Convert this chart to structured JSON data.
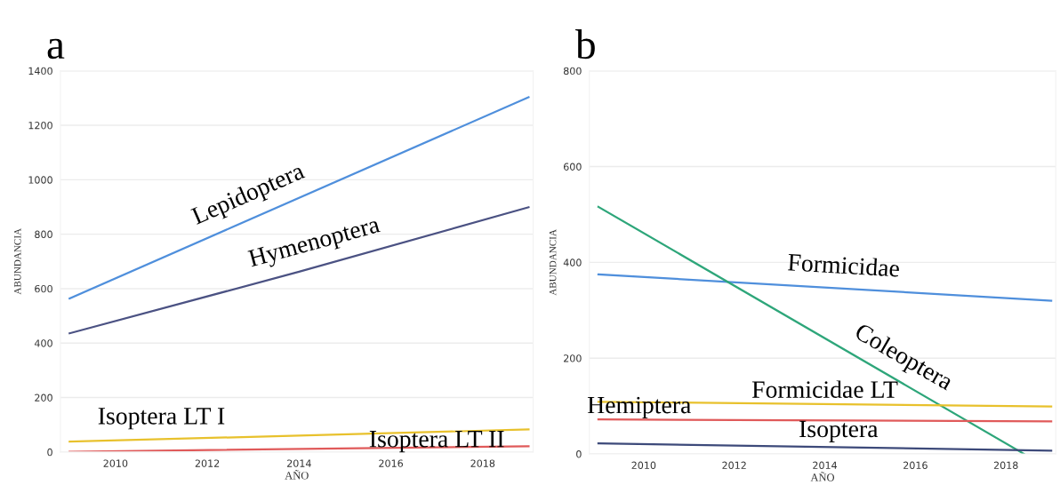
{
  "chart_data": [
    {
      "type": "line",
      "title": "a",
      "xlabel": "AÑO",
      "ylabel": "ABUNDANCIA",
      "xlim": [
        2008.8,
        2019.1
      ],
      "xticks": [
        2010,
        2012,
        2014,
        2016,
        2018
      ],
      "ylim": [
        0,
        1400
      ],
      "yticks": [
        0,
        200,
        400,
        600,
        800,
        1000,
        1200,
        1400
      ],
      "grid": "y",
      "series": [
        {
          "name": "Lepidoptera",
          "color": "#4f8fdc",
          "x": [
            2009,
            2019
          ],
          "values": [
            564,
            1303
          ]
        },
        {
          "name": "Hymenoptera",
          "color": "#4b5283",
          "x": [
            2009,
            2014,
            2019
          ],
          "values": [
            436,
            662,
            899
          ]
        },
        {
          "name": "Isoptera LT I",
          "color": "#e8c12c",
          "x": [
            2009,
            2019
          ],
          "values": [
            38,
            83
          ]
        },
        {
          "name": "Isoptera LT II",
          "color": "#e05a5a",
          "x": [
            2009,
            2019
          ],
          "values": [
            1,
            21
          ]
        }
      ]
    },
    {
      "type": "line",
      "title": "b",
      "xlabel": "AÑO",
      "ylabel": "ABUNDANCIA",
      "xlim": [
        2008.8,
        2019.1
      ],
      "xticks": [
        2010,
        2012,
        2014,
        2016,
        2018
      ],
      "ylim": [
        0,
        800
      ],
      "yticks": [
        0,
        200,
        400,
        600,
        800
      ],
      "grid": "y",
      "series": [
        {
          "name": "Formicidae",
          "color": "#4f8fdc",
          "x": [
            2009,
            2019
          ],
          "values": [
            375,
            320
          ]
        },
        {
          "name": "Coleoptera",
          "color": "#2ea67a",
          "x": [
            2009,
            2018.4
          ],
          "values": [
            516,
            0
          ]
        },
        {
          "name": "Formicidae LT",
          "color": "#e8c12c",
          "x": [
            2009,
            2019
          ],
          "values": [
            109,
            99
          ]
        },
        {
          "name": "Hemiptera",
          "color": "#e05a5a",
          "x": [
            2009,
            2019
          ],
          "values": [
            72,
            68
          ]
        },
        {
          "name": "Isoptera",
          "color": "#3d4a7a",
          "x": [
            2009,
            2019
          ],
          "values": [
            22,
            7
          ]
        }
      ]
    }
  ]
}
